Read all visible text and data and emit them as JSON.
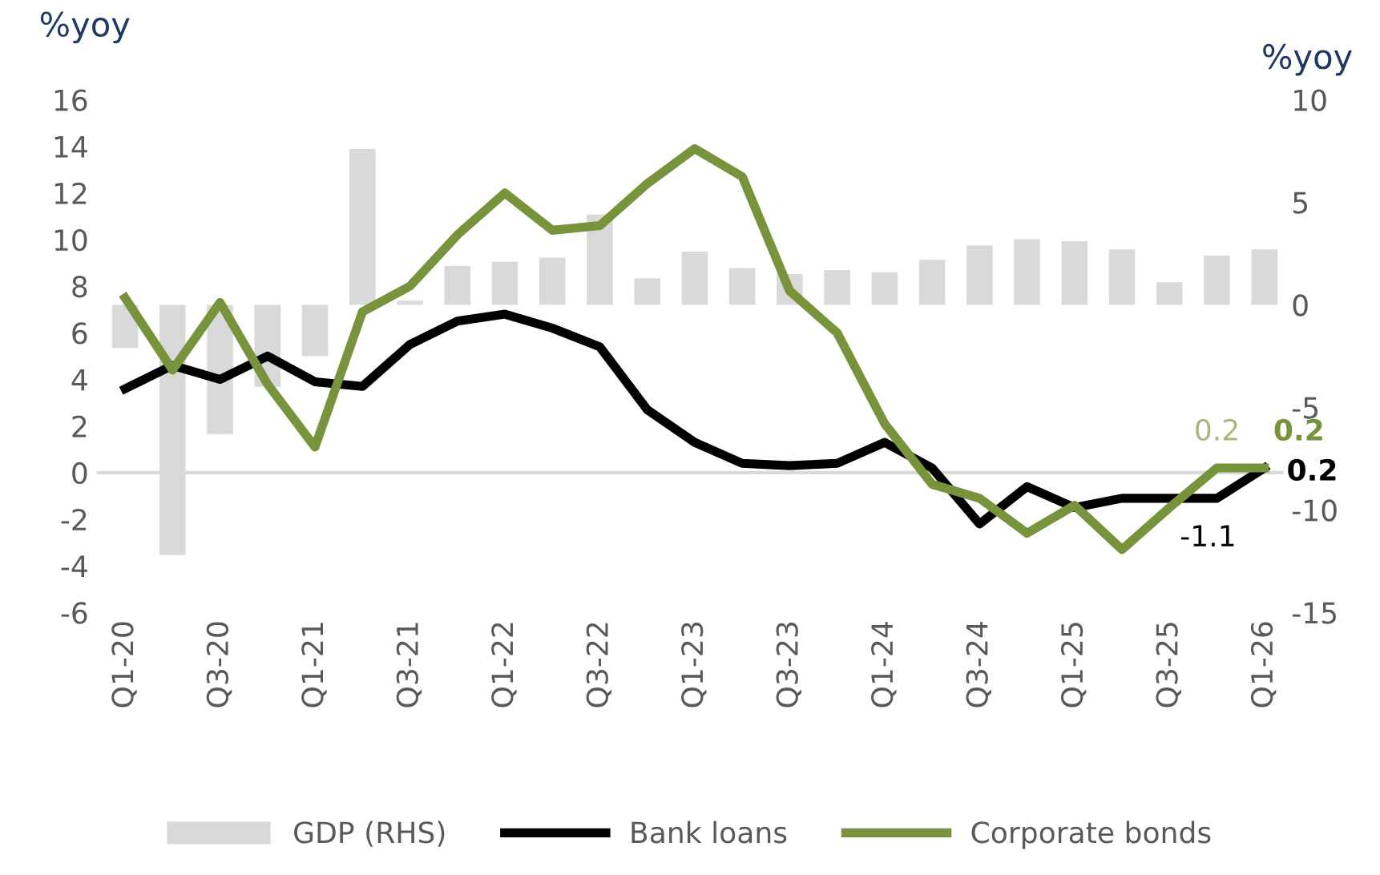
{
  "chart_data": {
    "type": "line",
    "ylabel": "%yoy",
    "y2label": "%yoy",
    "categories": [
      "Q1-20",
      null,
      "Q3-20",
      null,
      "Q1-21",
      null,
      "Q3-21",
      null,
      "Q1-22",
      null,
      "Q3-22",
      null,
      "Q1-23",
      null,
      "Q3-23",
      null,
      "Q1-24",
      null,
      "Q3-24",
      null,
      "Q1-25",
      null,
      "Q3-25",
      null,
      "Q1-26"
    ],
    "series": [
      {
        "name": "GDP (RHS)",
        "type": "bar",
        "axis": "y2",
        "color": "#d9d9d9",
        "values": [
          -2.1,
          -12.2,
          -6.3,
          -4.0,
          -2.5,
          7.6,
          0.2,
          1.9,
          2.1,
          2.3,
          4.4,
          1.3,
          2.6,
          1.8,
          1.5,
          1.7,
          1.6,
          2.2,
          2.9,
          3.2,
          3.1,
          2.7,
          1.1,
          2.4,
          2.7
        ]
      },
      {
        "name": "Bank loans",
        "color": "#000000",
        "values": [
          3.6,
          4.6,
          4.0,
          5.0,
          3.9,
          3.7,
          5.5,
          6.5,
          6.8,
          6.2,
          5.4,
          2.7,
          1.3,
          0.4,
          0.3,
          0.4,
          1.3,
          0.2,
          -2.2,
          -0.6,
          -1.5,
          -1.1,
          -1.1,
          -1.1,
          0.2
        ],
        "value_labels": [
          null,
          null,
          null,
          null,
          null,
          null,
          null,
          null,
          null,
          null,
          null,
          null,
          null,
          null,
          null,
          null,
          null,
          null,
          null,
          null,
          null,
          null,
          null,
          "-1.1",
          "0.2"
        ]
      },
      {
        "name": "Corporate bonds",
        "color": "#77933c",
        "values": [
          7.5,
          4.4,
          7.3,
          3.8,
          1.1,
          6.9,
          8.0,
          10.2,
          12.0,
          10.4,
          10.6,
          12.4,
          13.9,
          12.7,
          7.8,
          6.0,
          2.1,
          -0.5,
          -1.1,
          -2.6,
          -1.4,
          -3.3,
          -1.5,
          0.2,
          0.2
        ],
        "value_labels": [
          null,
          null,
          null,
          null,
          null,
          null,
          null,
          null,
          null,
          null,
          null,
          null,
          null,
          null,
          null,
          null,
          null,
          null,
          null,
          null,
          null,
          null,
          null,
          "0.2",
          "0.2"
        ]
      }
    ],
    "ylim": [
      -6,
      16
    ],
    "yticks": [
      -6,
      -4,
      -2,
      0,
      2,
      4,
      6,
      8,
      10,
      12,
      14,
      16
    ],
    "y2lim": [
      -15,
      10
    ],
    "y2ticks": [
      -15,
      -10,
      -5,
      0,
      5,
      10
    ],
    "ref_lines": [
      {
        "axis": "y",
        "value": 0,
        "color": "#d9d9d9"
      }
    ],
    "legend": "bottom",
    "grid": false
  }
}
